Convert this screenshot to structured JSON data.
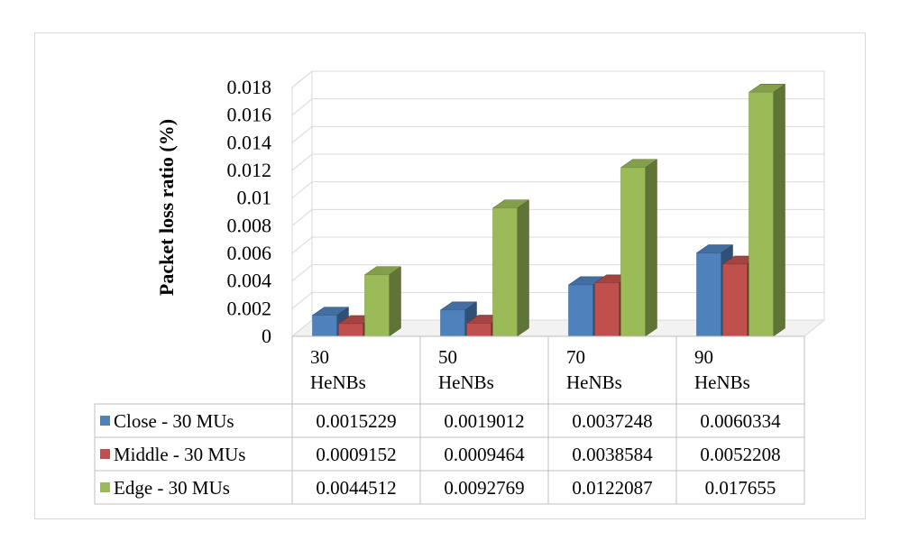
{
  "chart_data": {
    "type": "bar",
    "subtype": "3d-clustered-column-with-data-table",
    "ylabel": "Packet loss ratio (%)",
    "ylim": [
      0,
      0.018
    ],
    "yticks": [
      "0",
      "0.002",
      "0.004",
      "0.006",
      "0.008",
      "0.01",
      "0.012",
      "0.014",
      "0.016",
      "0.018"
    ],
    "categories": [
      {
        "line1": "30",
        "line2": "HeNBs"
      },
      {
        "line1": "50",
        "line2": "HeNBs"
      },
      {
        "line1": "70",
        "line2": "HeNBs"
      },
      {
        "line1": "90",
        "line2": "HeNBs"
      }
    ],
    "series": [
      {
        "name": "Close - 30 MUs",
        "color": "#4f81bd",
        "values": [
          0.0015229,
          0.0019012,
          0.0037248,
          0.0060334
        ],
        "labels": [
          "0.0015229",
          "0.0019012",
          "0.0037248",
          "0.0060334"
        ]
      },
      {
        "name": "Middle - 30 MUs",
        "color": "#c0504d",
        "values": [
          0.0009152,
          0.0009464,
          0.0038584,
          0.0052208
        ],
        "labels": [
          "0.0009152",
          "0.0009464",
          "0.0038584",
          "0.0052208"
        ]
      },
      {
        "name": "Edge - 30 MUs",
        "color": "#9bbb59",
        "values": [
          0.0044512,
          0.0092769,
          0.0122087,
          0.017655
        ],
        "labels": [
          "0.0044512",
          "0.0092769",
          "0.0122087",
          "0.017655"
        ]
      }
    ],
    "grid": true,
    "legend": "data-table-left"
  }
}
